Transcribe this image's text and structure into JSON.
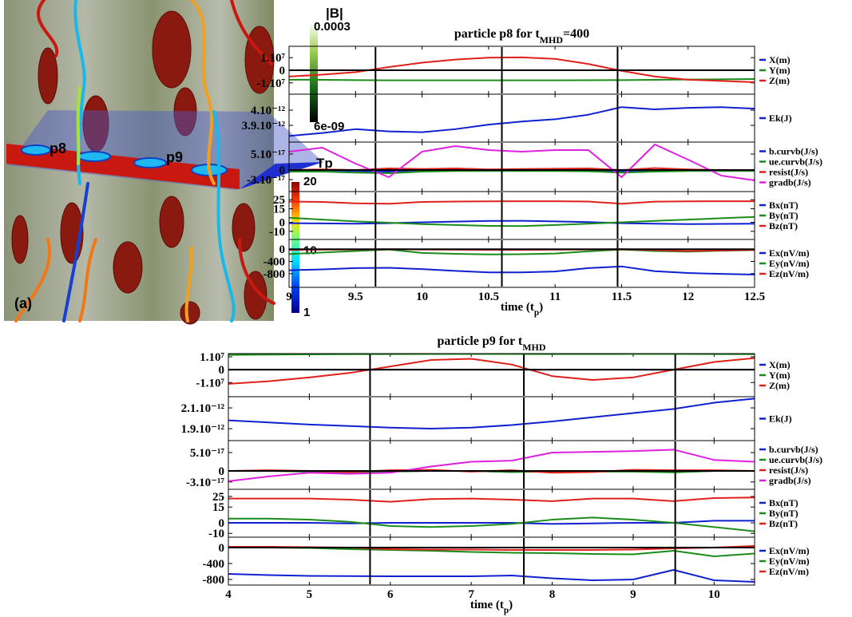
{
  "image": {
    "labels": {
      "p8": "p8",
      "p9": "p9",
      "panel": "(a)"
    },
    "colorbars": [
      {
        "label": "|B|",
        "lim": [
          6e-09,
          0.0003
        ],
        "ticks": [
          0.0003,
          {
            "value": 6e-09,
            "label": "6e-09"
          }
        ]
      },
      {
        "label": "Tp",
        "lim": [
          1,
          20
        ],
        "ticks": [
          20,
          10,
          1
        ]
      }
    ]
  },
  "chart_data": [
    {
      "type": "line",
      "title": {
        "text": "particle p8 for t",
        "sub": "MHD",
        "after": "=400"
      },
      "xlabel": {
        "text": "time (t",
        "sub": "p",
        "after": ")"
      },
      "x": [
        9,
        9.25,
        9.5,
        9.75,
        10,
        10.25,
        10.5,
        10.75,
        11,
        11.25,
        11.5,
        11.75,
        12,
        12.25,
        12.5
      ],
      "xlim": [
        9,
        12.5
      ],
      "xticks": [
        9,
        9.5,
        10,
        10.5,
        11,
        11.5,
        12,
        12.5
      ],
      "vlines": [
        9.65,
        10.6,
        11.47
      ],
      "panels": [
        {
          "ylim": [
            -19000000.0,
            19000000.0
          ],
          "yticks": [
            {
              "value": 10000000.0,
              "label": "1.10⁷"
            },
            0,
            {
              "value": -10000000.0,
              "label": "-1.10⁷"
            }
          ],
          "hlines": [
            0
          ],
          "series": [
            {
              "name": "X(m)",
              "color": "#1020d0",
              "values": [
                0,
                0,
                0,
                0,
                0,
                0,
                0,
                0,
                0,
                0,
                0,
                0,
                0,
                0,
                0
              ]
            },
            {
              "name": "Y(m)",
              "color": "#1a8c1a",
              "values": [
                -7500000.0,
                -7600000.0,
                -7800000.0,
                -8000000.0,
                -8000000.0,
                -8000000.0,
                -8000000.0,
                -8000000.0,
                -8000000.0,
                -7900000.0,
                -7800000.0,
                -7600000.0,
                -7400000.0,
                -7200000.0,
                -7000000.0
              ]
            },
            {
              "name": "Z(m)",
              "color": "#e0201a",
              "values": [
                -5000000.0,
                -3500000.0,
                -1500000.0,
                2500000.0,
                6000000.0,
                8500000.0,
                10000000.0,
                10200000.0,
                9000000.0,
                5000000.0,
                -500000.0,
                -5000000.0,
                -7500000.0,
                -8500000.0,
                -9500000.0
              ]
            }
          ]
        },
        {
          "ylim": [
            3.79e-12,
            4.105e-12
          ],
          "yticks": [
            {
              "value": 4e-12,
              "label": "4.10⁻¹²"
            },
            {
              "value": 3.9e-12,
              "label": "3.9.10⁻¹²"
            }
          ],
          "hlines": [],
          "series": [
            {
              "name": "Ek(J)",
              "color": "#1020d0",
              "values": [
                3.83e-12,
                3.85e-12,
                3.875e-12,
                3.86e-12,
                3.855e-12,
                3.875e-12,
                3.905e-12,
                3.925e-12,
                3.94e-12,
                3.97e-12,
                4.02e-12,
                4.005e-12,
                4.015e-12,
                4.02e-12,
                4.01e-12
              ]
            }
          ]
        },
        {
          "ylim": [
            -6.75e-17,
            8.75e-17
          ],
          "yticks": [
            {
              "value": 5e-17,
              "label": "5.10⁻¹⁷"
            },
            0,
            {
              "value": -3e-17,
              "label": "-3.10⁻¹⁷"
            }
          ],
          "hlines": [
            0
          ],
          "series": [
            {
              "name": "b.curvb(J/s)",
              "color": "#1020d0",
              "values": [
                0,
                0,
                -3e-18,
                -5e-18,
                0,
                0,
                0,
                0,
                0,
                0,
                -5e-18,
                0,
                0,
                0,
                0
              ]
            },
            {
              "name": "ue.curvb(J/s)",
              "color": "#1a8c1a",
              "values": [
                -5e-18,
                -5e-18,
                -8e-18,
                -1e-17,
                -5e-18,
                -3e-18,
                -3e-18,
                -3e-18,
                -3e-18,
                -4e-18,
                -8e-18,
                -5e-18,
                -3e-18,
                -3e-18,
                -3e-18
              ]
            },
            {
              "name": "resist(J/s)",
              "color": "#e0201a",
              "values": [
                0,
                2e-18,
                0,
                5e-18,
                3e-18,
                5e-18,
                2e-18,
                3e-18,
                4e-18,
                5e-18,
                0,
                6e-18,
                2e-18,
                0,
                0
              ]
            },
            {
              "name": "gradb(J/s)",
              "color": "#e020e0",
              "values": [
                5.75e-17,
                7e-17,
                2e-17,
                -2.25e-17,
                5.75e-17,
                7.5e-17,
                6.25e-17,
                5.75e-17,
                6.25e-17,
                6.25e-17,
                -2.25e-17,
                8e-17,
                3.25e-17,
                -1.75e-17,
                -3.25e-17
              ]
            }
          ]
        },
        {
          "ylim": [
            -19,
            34
          ],
          "yticks": [
            25,
            15,
            0,
            -10
          ],
          "hlines": [],
          "series": [
            {
              "name": "Bx(nT)",
              "color": "#1020d0",
              "values": [
                -1,
                -1.2,
                -1.5,
                -1,
                0,
                0.8,
                1.5,
                1.6,
                1,
                0.2,
                -1,
                -1.5,
                -2,
                -1.8,
                -1.5
              ]
            },
            {
              "name": "By(nT)",
              "color": "#1a8c1a",
              "values": [
                5,
                3,
                1,
                -0.5,
                -2,
                -3,
                -4,
                -4.2,
                -3,
                -1.5,
                0,
                1.5,
                3,
                4.5,
                6
              ]
            },
            {
              "name": "Bz(nT)",
              "color": "#e0201a",
              "values": [
                23,
                22.5,
                21,
                20.5,
                22.5,
                23,
                23.2,
                23.3,
                23.3,
                23,
                20.5,
                22.8,
                23.2,
                23.3,
                23.3
              ]
            }
          ]
        },
        {
          "ylim": [
            -1250,
            320
          ],
          "yticks": [
            0,
            -400,
            -800
          ],
          "hlines": [
            0
          ],
          "series": [
            {
              "name": "Ex(nV/m)",
              "color": "#1020d0",
              "values": [
                -690,
                -660,
                -620,
                -610,
                -650,
                -710,
                -760,
                -760,
                -730,
                -620,
                -565,
                -720,
                -780,
                -810,
                -830
              ]
            },
            {
              "name": "Ey(nV/m)",
              "color": "#1a8c1a",
              "values": [
                -160,
                -110,
                -60,
                -10,
                -120,
                -150,
                -170,
                -165,
                -140,
                -70,
                -10,
                -60,
                -80,
                -50,
                -30
              ]
            },
            {
              "name": "Ez(nV/m)",
              "color": "#e0201a",
              "values": [
                -20,
                -15,
                -10,
                0,
                -10,
                -15,
                -20,
                -20,
                -15,
                -10,
                0,
                -30,
                -60,
                -40,
                -20
              ]
            }
          ]
        }
      ]
    },
    {
      "type": "line",
      "title": {
        "text": "particle p9 for t",
        "sub": "MHD"
      },
      "xlabel": {
        "text": "time (t",
        "sub": "p",
        "after": ")"
      },
      "x": [
        4,
        4.5,
        5,
        5.5,
        6,
        6.5,
        7,
        7.5,
        8,
        8.5,
        9,
        9.5,
        10,
        10.5
      ],
      "xlim": [
        4,
        10.5
      ],
      "xticks": [
        4,
        5,
        6,
        7,
        8,
        9,
        10
      ],
      "vlines": [
        5.75,
        7.65,
        9.52
      ],
      "panels": [
        {
          "ylim": [
            -21000000.0,
            12500000.0
          ],
          "yticks": [
            {
              "value": 10000000.0,
              "label": "1.10⁷"
            },
            0,
            {
              "value": -10000000.0,
              "label": "-1.10⁷"
            }
          ],
          "hlines": [
            0
          ],
          "series": [
            {
              "name": "X(m)",
              "color": "#1020d0",
              "values": [
                0,
                0,
                0,
                0,
                0,
                0,
                0,
                0,
                0,
                0,
                0,
                0,
                0,
                0
              ]
            },
            {
              "name": "Y(m)",
              "color": "#1a8c1a",
              "values": [
                11500000.0,
                11700000.0,
                11900000.0,
                12000000.0,
                12100000.0,
                12200000.0,
                12200000.0,
                12200000.0,
                12100000.0,
                12100000.0,
                12200000.0,
                12200000.0,
                12100000.0,
                12000000.0
              ]
            },
            {
              "name": "Z(m)",
              "color": "#e0201a",
              "values": [
                -11000000.0,
                -9000000.0,
                -6000000.0,
                -2500000.0,
                2500000.0,
                7500000.0,
                8500000.0,
                4000000.0,
                -5000000.0,
                -8000000.0,
                -6000000.0,
                0,
                6000000.0,
                9000000.0
              ]
            }
          ]
        },
        {
          "ylim": [
            1.785e-12,
            2.208e-12
          ],
          "yticks": [
            {
              "value": 2.1e-12,
              "label": "2.1.10⁻¹²"
            },
            {
              "value": 1.9e-12,
              "label": "1.9.10⁻¹²"
            }
          ],
          "hlines": [],
          "series": [
            {
              "name": "Ek(J)",
              "color": "#1020d0",
              "values": [
                1.98e-12,
                1.96e-12,
                1.94e-12,
                1.925e-12,
                1.91e-12,
                1.9e-12,
                1.91e-12,
                1.935e-12,
                1.97e-12,
                2.01e-12,
                2.05e-12,
                2.09e-12,
                2.15e-12,
                2.19e-12
              ]
            }
          ]
        },
        {
          "ylim": [
            -5e-17,
            8.26e-17
          ],
          "yticks": [
            {
              "value": 5e-17,
              "label": "5.10⁻¹⁷"
            },
            0,
            {
              "value": -3e-17,
              "label": "-3.10⁻¹⁷"
            }
          ],
          "hlines": [
            0
          ],
          "series": [
            {
              "name": "b.curvb(J/s)",
              "color": "#1020d0",
              "values": [
                0,
                0,
                0,
                -3e-18,
                0,
                0,
                0,
                -3e-18,
                0,
                0,
                0,
                -3e-18,
                0,
                0
              ]
            },
            {
              "name": "ue.curvb(J/s)",
              "color": "#1a8c1a",
              "values": [
                0,
                0,
                -2e-18,
                -4e-18,
                -2e-18,
                0,
                0,
                -3e-18,
                -2e-18,
                -2e-18,
                -2e-18,
                -4e-18,
                0,
                0
              ]
            },
            {
              "name": "resist(J/s)",
              "color": "#e0201a",
              "values": [
                0,
                2e-18,
                0,
                -3e-18,
                2e-18,
                3e-18,
                -2e-18,
                2e-18,
                -5e-18,
                -3e-18,
                3e-18,
                2e-18,
                2e-18,
                0
              ]
            },
            {
              "name": "gradb(J/s)",
              "color": "#e020e0",
              "values": [
                -2.8e-17,
                -1.5e-17,
                -5e-18,
                -8e-18,
                -5e-18,
                1.2e-17,
                2.5e-17,
                2.8e-17,
                5e-17,
                5.2e-17,
                5.4e-17,
                5.8e-17,
                3e-17,
                2.5e-17
              ]
            }
          ]
        },
        {
          "ylim": [
            -13.6,
            31.8
          ],
          "yticks": [
            25,
            15,
            0,
            -10
          ],
          "hlines": [],
          "series": [
            {
              "name": "Bx(nT)",
              "color": "#1020d0",
              "values": [
                0,
                0,
                0,
                -0.5,
                0,
                0,
                0,
                0,
                -1,
                -0.5,
                0,
                0,
                2,
                2
              ]
            },
            {
              "name": "By(nT)",
              "color": "#1a8c1a",
              "values": [
                4,
                4,
                3,
                1,
                -3,
                -4,
                -3,
                -1,
                3,
                5,
                3,
                0,
                -4,
                -8
              ]
            },
            {
              "name": "Bz(nT)",
              "color": "#e0201a",
              "values": [
                23,
                23,
                23,
                22,
                20,
                22.5,
                23,
                22,
                20.5,
                23,
                23,
                20.5,
                23.5,
                24
              ]
            }
          ]
        },
        {
          "ylim": [
            -940,
            260
          ],
          "yticks": [
            0,
            -400,
            -800
          ],
          "hlines": [
            0
          ],
          "series": [
            {
              "name": "Ex(nV/m)",
              "color": "#1020d0",
              "values": [
                -660,
                -690,
                -710,
                -715,
                -720,
                -720,
                -720,
                -700,
                -770,
                -820,
                -800,
                -560,
                -820,
                -860
              ]
            },
            {
              "name": "Ey(nV/m)",
              "color": "#1a8c1a",
              "values": [
                0,
                0,
                -10,
                -40,
                -60,
                -80,
                -110,
                -130,
                -140,
                -160,
                -170,
                -80,
                -220,
                -150
              ]
            },
            {
              "name": "Ez(nV/m)",
              "color": "#e0201a",
              "values": [
                20,
                20,
                10,
                0,
                -40,
                -50,
                -50,
                -60,
                -60,
                -60,
                -50,
                -20,
                0,
                40
              ]
            }
          ]
        }
      ]
    }
  ]
}
